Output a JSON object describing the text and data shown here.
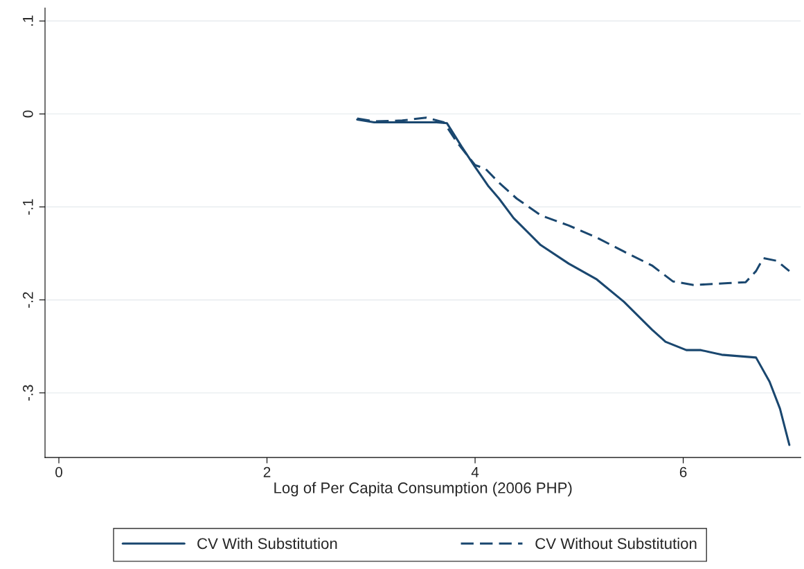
{
  "chart_data": {
    "type": "line",
    "xlabel": "Log of Per Capita Consumption (2006 PHP)",
    "xlim": [
      -0.133,
      7.13
    ],
    "xticks": [
      0,
      2,
      4,
      6
    ],
    "ylim": [
      -0.3695,
      0.114
    ],
    "yticks": [
      {
        "value": 0.1,
        "label": ".1"
      },
      {
        "value": 0,
        "label": "0"
      },
      {
        "value": -0.1,
        "label": "-.1"
      },
      {
        "value": -0.2,
        "label": "-.2"
      },
      {
        "value": -0.3,
        "label": "-.3"
      }
    ],
    "grid": "y",
    "legend": "bottom",
    "marker": "none",
    "series": [
      {
        "name": "CV With Substitution",
        "color": "#1a476f",
        "line_style": "solid",
        "x": [
          2.867,
          3.03,
          3.63,
          3.73,
          3.87,
          4.0,
          4.13,
          4.23,
          4.37,
          4.63,
          4.9,
          5.17,
          5.43,
          5.7,
          5.83,
          6.03,
          6.17,
          6.37,
          6.7,
          6.83,
          6.93,
          7.02
        ],
        "values": [
          -0.006,
          -0.009,
          -0.009,
          -0.01,
          -0.035,
          -0.057,
          -0.078,
          -0.091,
          -0.112,
          -0.141,
          -0.161,
          -0.178,
          -0.202,
          -0.232,
          -0.245,
          -0.254,
          -0.254,
          -0.259,
          -0.262,
          -0.288,
          -0.317,
          -0.356
        ]
      },
      {
        "name": "CV Without Substitution",
        "color": "#1a476f",
        "line_style": "dashed",
        "x": [
          2.867,
          3.03,
          3.3,
          3.53,
          3.7,
          3.83,
          4.0,
          4.1,
          4.23,
          4.4,
          4.63,
          4.9,
          5.17,
          5.43,
          5.7,
          5.9,
          6.1,
          6.43,
          6.6,
          6.7,
          6.77,
          6.9,
          7.02
        ],
        "values": [
          -0.005,
          -0.008,
          -0.007,
          -0.004,
          -0.009,
          -0.031,
          -0.055,
          -0.059,
          -0.074,
          -0.091,
          -0.109,
          -0.12,
          -0.133,
          -0.148,
          -0.163,
          -0.18,
          -0.184,
          -0.182,
          -0.181,
          -0.169,
          -0.155,
          -0.158,
          -0.169
        ]
      }
    ]
  }
}
